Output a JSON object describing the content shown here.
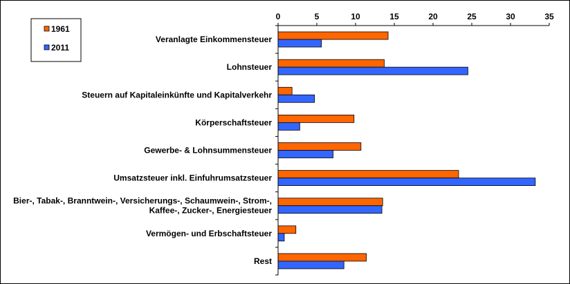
{
  "chart_data": {
    "type": "bar",
    "orientation": "horizontal",
    "categories": [
      "Veranlagte Einkommensteuer",
      "Lohnsteuer",
      "Steuern auf Kapitaleinkünfte und Kapitalverkehr",
      "Körperschaftsteuer",
      "Gewerbe- & Lohnsummensteuer",
      "Umsatzsteuer inkl. Einfuhrumsatzsteuer",
      [
        "Bier-, Tabak-, Branntwein-, Versicherungs-, Schaumwein-, Strom-,",
        "Kaffee-, Zucker-, Energiesteuer"
      ],
      "Vermögen- und Erbschaftsteuer",
      "Rest"
    ],
    "series": [
      {
        "name": "1961",
        "color": "#FF6600",
        "values": [
          14.2,
          13.7,
          1.8,
          9.8,
          10.7,
          23.3,
          13.5,
          2.3,
          11.4
        ]
      },
      {
        "name": "2011",
        "color": "#3366FF",
        "values": [
          5.6,
          24.5,
          4.7,
          2.8,
          7.1,
          33.2,
          13.4,
          0.8,
          8.5
        ]
      }
    ],
    "xlim": [
      0,
      35
    ],
    "xticks": [
      0,
      5,
      10,
      15,
      20,
      25,
      30,
      35
    ],
    "x_axis_position": "top",
    "grid": false,
    "legend": "top-left",
    "title": "",
    "xlabel": "",
    "ylabel": ""
  }
}
